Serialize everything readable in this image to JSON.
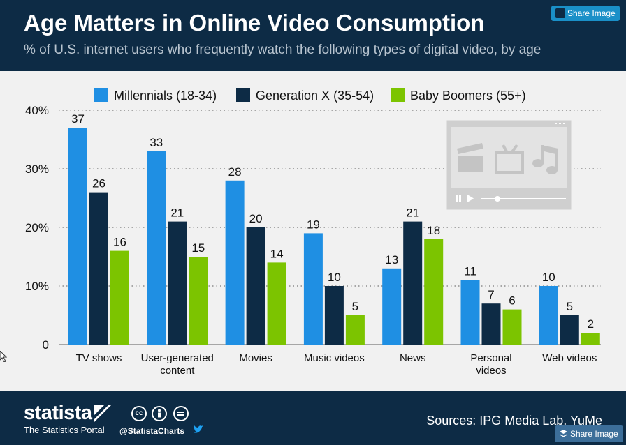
{
  "header": {
    "title": "Age Matters in Online Video Consumption",
    "subtitle": "% of U.S. internet users who frequently watch the following types of digital video, by age",
    "share_label": "Share Image"
  },
  "footer": {
    "brand": "statista",
    "brand_sub": "The Statistics Portal",
    "handle": "@StatistaCharts",
    "sources": "Sources: IPG Media Lab, YuMe",
    "share_label": "Share Image"
  },
  "colors": {
    "millennials": "#1f8fe3",
    "genx": "#0d2b45",
    "boomers": "#7cc400",
    "background": "#f1f1f1",
    "header": "#0d2b45"
  },
  "icons": [
    "share-image-icon",
    "video-player-icon",
    "clapperboard-icon",
    "tv-icon",
    "music-note-icon",
    "cc-icon",
    "attribution-icon",
    "equals-icon",
    "twitter-icon"
  ],
  "chart_data": {
    "type": "bar",
    "title": "Age Matters in Online Video Consumption",
    "subtitle": "% of U.S. internet users who frequently watch the following types of digital video, by age",
    "categories": [
      [
        "TV shows"
      ],
      [
        "User-generated",
        "content"
      ],
      [
        "Movies"
      ],
      [
        "Music videos"
      ],
      [
        "News"
      ],
      [
        "Personal",
        "videos"
      ],
      [
        "Web videos"
      ]
    ],
    "series": [
      {
        "name": "Millennials (18-34)",
        "values": [
          37,
          33,
          28,
          19,
          13,
          11,
          10
        ],
        "color": "#1f8fe3"
      },
      {
        "name": "Generation X (35-54)",
        "values": [
          26,
          21,
          20,
          10,
          21,
          7,
          5
        ],
        "color": "#0d2b45"
      },
      {
        "name": "Baby Boomers (55+)",
        "values": [
          16,
          15,
          14,
          5,
          18,
          6,
          2
        ],
        "color": "#7cc400"
      }
    ],
    "ylim": [
      0,
      40
    ],
    "yticks": [
      0,
      10,
      20,
      30,
      40
    ],
    "ytick_labels": [
      "0",
      "10%",
      "20%",
      "30%",
      "40%"
    ],
    "grid": "dotted horizontal",
    "legend": "top"
  }
}
